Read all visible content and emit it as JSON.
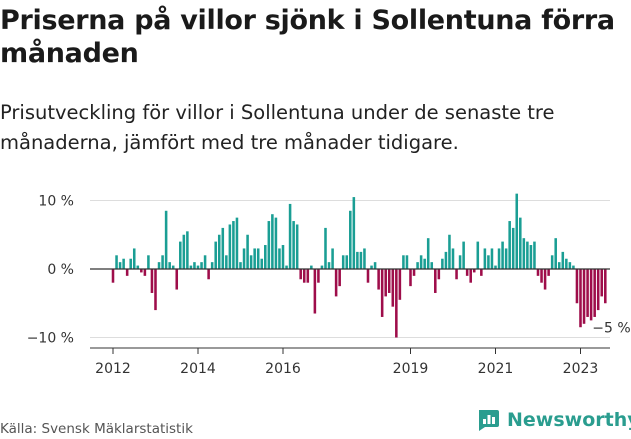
{
  "header": {
    "title": "Priserna på villor sjönk i Sollentuna förra månaden",
    "subtitle": "Prisutveckling för villor i Sollentuna under de senaste tre månaderna, jämfört med tre månader tidigare."
  },
  "footer": {
    "source": "Källa: Svensk Mäklarstatistik",
    "brand": "Newsworthy",
    "brand_icon": "newsworthy-logo-icon"
  },
  "colors": {
    "positive": "#1a9e94",
    "negative": "#9e0d4a",
    "zero_line": "#333333",
    "grid": "#dddddd"
  },
  "chart_data": {
    "type": "bar",
    "title": "",
    "xlabel": "",
    "ylabel": "",
    "ylim": [
      -11,
      11
    ],
    "y_ticks": [
      {
        "value": 10,
        "label": "10 %"
      },
      {
        "value": 0,
        "label": "0 %"
      },
      {
        "value": -10,
        "label": "−10 %"
      }
    ],
    "x_start": 2012.0,
    "x_step": 0.0833333,
    "x_ticks": [
      {
        "value": 2012,
        "label": "2012"
      },
      {
        "value": 2014,
        "label": "2014"
      },
      {
        "value": 2016,
        "label": "2016"
      },
      {
        "value": 2019,
        "label": "2019"
      },
      {
        "value": 2021,
        "label": "2021"
      },
      {
        "value": 2023,
        "label": "2023"
      }
    ],
    "annotation": {
      "label": "−5 %",
      "value": -5
    },
    "values": [
      -2,
      2,
      1,
      1.5,
      -1,
      1.5,
      3,
      0.5,
      -0.5,
      -1,
      2,
      -3.5,
      -6,
      1,
      2,
      8.5,
      1,
      0.5,
      -3,
      4,
      5,
      5.5,
      0.5,
      1,
      0.5,
      1,
      2,
      -1.5,
      1,
      4,
      5,
      6,
      2,
      6.5,
      7,
      7.5,
      1,
      3,
      5,
      2,
      3,
      3,
      1.5,
      3.5,
      7,
      8,
      7.5,
      3,
      3.5,
      0.5,
      9.5,
      7,
      6.5,
      -1.5,
      -2,
      -2,
      0.5,
      -6.5,
      -2,
      0.5,
      6,
      1,
      3,
      -4,
      -2.5,
      2,
      2,
      8.5,
      10.5,
      2.5,
      2.5,
      3,
      -2,
      0.5,
      1,
      -3,
      -7,
      -4,
      -3.5,
      -5.5,
      -10,
      -4.5,
      2,
      2,
      -2.5,
      -1,
      1,
      2,
      1.5,
      4.5,
      1,
      -3.5,
      -1.5,
      1.5,
      2.5,
      5,
      3,
      -1.5,
      2,
      4,
      -1,
      -2,
      -0.5,
      4,
      -1,
      3,
      2,
      3,
      0.5,
      3,
      4,
      3,
      7,
      6,
      11,
      7.5,
      4.5,
      4,
      3.5,
      4,
      -1,
      -2,
      -3,
      -1,
      2,
      4.5,
      1,
      2.5,
      1.5,
      1,
      0.5,
      -5,
      -8.5,
      -8,
      -7,
      -7.5,
      -7,
      -6,
      -4,
      -5
    ]
  }
}
